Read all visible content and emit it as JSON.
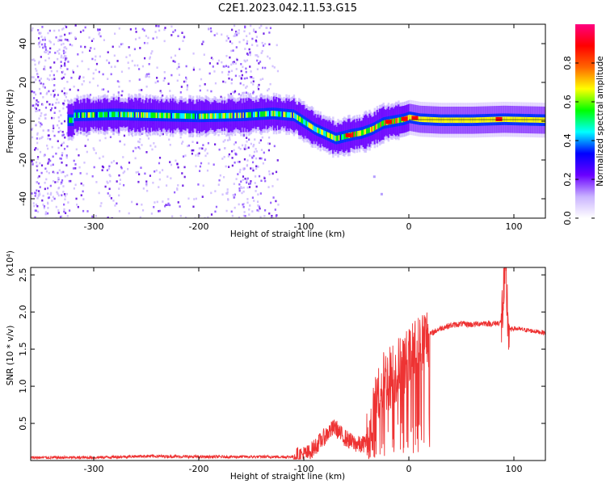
{
  "title": "C2E1.2023.042.11.53.G15",
  "chart_data": [
    {
      "type": "heatmap",
      "xlabel": "Height of straight line (km)",
      "ylabel": "Frequency (Hz)",
      "xlim": [
        -360,
        130
      ],
      "ylim": [
        -50,
        50
      ],
      "xticks": [
        -300,
        -200,
        -100,
        0,
        100
      ],
      "yticks": [
        -40,
        -20,
        0,
        20,
        40
      ],
      "colorbar": {
        "label": "Normalized spectral amplitude",
        "range": [
          0,
          1
        ],
        "ticks": [
          0.0,
          0.2,
          0.4,
          0.6,
          0.8
        ],
        "colors": [
          "#ffffff",
          "#c9b3ff",
          "#6a00ff",
          "#0000ff",
          "#00ffff",
          "#00ff00",
          "#ffff00",
          "#ff6600",
          "#ff0000",
          "#ff0080"
        ]
      },
      "signal_centerline": {
        "x": [
          -320,
          -280,
          -240,
          -200,
          -160,
          -130,
          -110,
          -90,
          -70,
          -55,
          -45,
          -35,
          -25,
          -15,
          -5,
          0,
          10,
          30,
          60,
          90,
          130
        ],
        "frequency": [
          3,
          3.5,
          3,
          2.5,
          3,
          4,
          3,
          -4,
          -9,
          -7,
          -6,
          -4,
          -1,
          0,
          1,
          2,
          1,
          0.5,
          0.5,
          1,
          0.5
        ]
      },
      "noise_region": {
        "x_start": -360,
        "x_end": -125
      }
    },
    {
      "type": "line",
      "xlabel": "Height of straight line (km)",
      "ylabel": "SNR (10 * v/v)",
      "yunit": "(x10⁴)",
      "xlim": [
        -360,
        130
      ],
      "ylim": [
        0,
        2.6
      ],
      "xticks": [
        -300,
        -200,
        -100,
        0,
        100
      ],
      "yticks": [
        0.5,
        1.0,
        1.5,
        2.0,
        2.5
      ],
      "line_color": "#ee3333",
      "series": [
        {
          "x": [
            -360,
            -300,
            -250,
            -200,
            -150,
            -110,
            -95,
            -85,
            -75,
            -70,
            -65,
            -55,
            -45,
            -38,
            -33,
            -28,
            -20,
            -12,
            -5,
            0,
            5,
            10,
            20,
            30,
            40,
            50,
            60,
            70,
            80,
            88,
            92,
            95,
            100,
            110,
            120,
            130
          ],
          "values": [
            0.04,
            0.04,
            0.06,
            0.05,
            0.05,
            0.05,
            0.1,
            0.25,
            0.4,
            0.45,
            0.35,
            0.25,
            0.2,
            0.3,
            0.6,
            1.0,
            1.1,
            1.2,
            1.3,
            1.35,
            1.45,
            1.55,
            1.7,
            1.78,
            1.82,
            1.84,
            1.83,
            1.85,
            1.84,
            1.86,
            2.5,
            1.75,
            1.78,
            1.76,
            1.74,
            1.72
          ]
        }
      ]
    }
  ]
}
